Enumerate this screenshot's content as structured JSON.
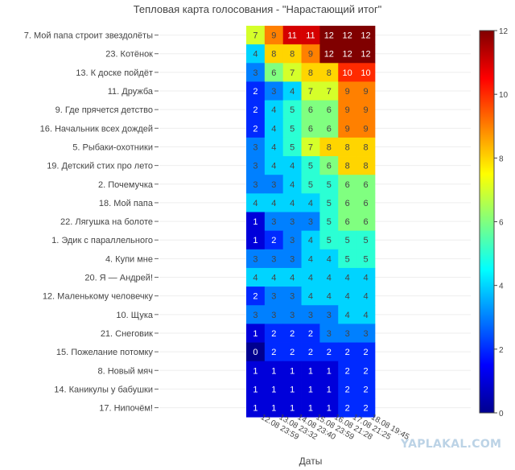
{
  "chart_data": {
    "type": "heatmap",
    "title": "Тепловая карта голосования - \"Нарастающий итог\"",
    "xlabel": "Даты",
    "ylabel": "",
    "x": [
      "12.08 23:59",
      "13.08 23:32",
      "14.08 23:40",
      "15.08 23:59",
      "16.08 21:28",
      "17.08 21:25",
      "18.08 19:45"
    ],
    "rows": [
      "7. Мой папа строит звездолёты",
      "23. Котёнок",
      "13. К доске пойдёт",
      "11. Дружба",
      "9. Где прячется детство",
      "16. Начальник всех дождей",
      "5. Рыбаки-охотники",
      "19. Детский стих про лето",
      "2. Почемучка",
      "18. Мой папа",
      "22. Лягушка на болоте",
      "1. Эдик с параллельного",
      "4. Купи мне",
      "20. Я — Андрей!",
      "12. Маленькому человечку",
      "10. Щука",
      "21. Снеговик",
      "15. Пожелание потомку",
      "8. Новый мяч",
      "14. Каникулы у бабушки",
      "17. Нипочём!"
    ],
    "values": [
      [
        7,
        9,
        11,
        11,
        12,
        12,
        12
      ],
      [
        4,
        8,
        8,
        9,
        12,
        12,
        12
      ],
      [
        3,
        6,
        7,
        8,
        8,
        10,
        10
      ],
      [
        2,
        3,
        4,
        7,
        7,
        9,
        9
      ],
      [
        2,
        4,
        5,
        6,
        6,
        9,
        9
      ],
      [
        2,
        4,
        5,
        6,
        6,
        9,
        9
      ],
      [
        3,
        4,
        5,
        7,
        8,
        8,
        8
      ],
      [
        3,
        4,
        4,
        5,
        6,
        8,
        8
      ],
      [
        3,
        3,
        4,
        5,
        5,
        6,
        6
      ],
      [
        4,
        4,
        4,
        4,
        5,
        6,
        6
      ],
      [
        1,
        3,
        3,
        3,
        5,
        6,
        6
      ],
      [
        1,
        2,
        3,
        4,
        5,
        5,
        5
      ],
      [
        3,
        3,
        3,
        4,
        4,
        5,
        5
      ],
      [
        4,
        4,
        4,
        4,
        4,
        4,
        4
      ],
      [
        2,
        3,
        3,
        4,
        4,
        4,
        4
      ],
      [
        3,
        3,
        3,
        3,
        3,
        4,
        4
      ],
      [
        1,
        2,
        2,
        2,
        3,
        3,
        3
      ],
      [
        0,
        2,
        2,
        2,
        2,
        2,
        2
      ],
      [
        1,
        1,
        1,
        1,
        1,
        2,
        2
      ],
      [
        1,
        1,
        1,
        1,
        1,
        2,
        2
      ],
      [
        1,
        1,
        1,
        1,
        1,
        2,
        2
      ]
    ],
    "zlim": [
      0,
      12
    ],
    "colorbar_ticks": [
      0,
      2,
      4,
      6,
      8,
      10,
      12
    ],
    "colorscale": "jet",
    "grid": true,
    "legend": "colorbar-right"
  },
  "watermark": "YAPLAKAL.COM"
}
